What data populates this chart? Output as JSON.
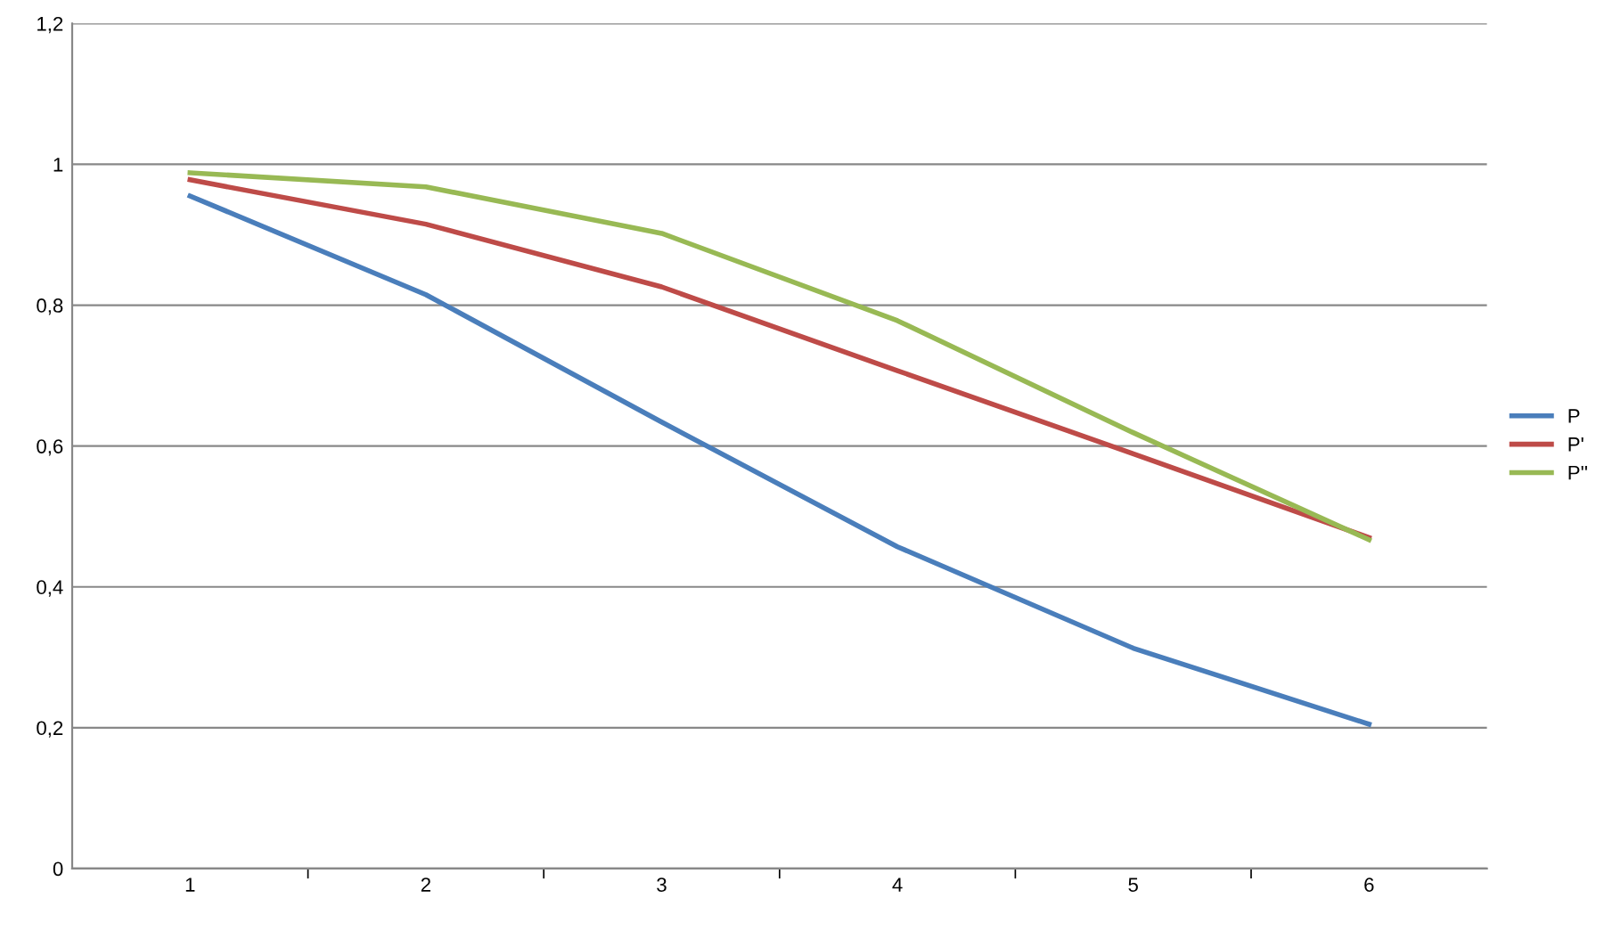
{
  "chart_data": {
    "type": "line",
    "categories": [
      "1",
      "2",
      "3",
      "4",
      "5",
      "6"
    ],
    "series": [
      {
        "name": "P",
        "color": "#4a7ebb",
        "values": [
          0.955,
          0.815,
          0.634,
          0.457,
          0.313,
          0.205
        ]
      },
      {
        "name": "P'",
        "color": "#be4b48",
        "values": [
          0.978,
          0.915,
          0.826,
          0.707,
          0.589,
          0.47
        ]
      },
      {
        "name": "P''",
        "color": "#98b954",
        "values": [
          0.988,
          0.968,
          0.902,
          0.778,
          0.619,
          0.467
        ]
      }
    ],
    "ylim": [
      0,
      1.2
    ],
    "yticks": [
      0,
      {
        "value": 0.2,
        "label": "0,2"
      },
      {
        "value": 0.4,
        "label": "0,4"
      },
      {
        "value": 0.6,
        "label": "0,6"
      },
      {
        "value": 0.8,
        "label": "0,8"
      },
      1,
      {
        "value": 1.2,
        "label": "1,2"
      }
    ],
    "grid": "y",
    "legend": "right",
    "marker": "none",
    "line_style": "solid"
  }
}
